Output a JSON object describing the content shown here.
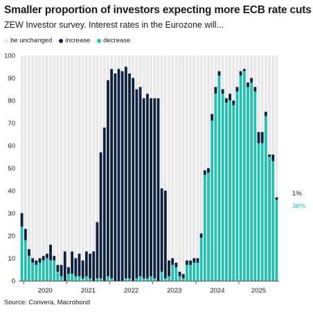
{
  "title": "Smaller proportion of investors expecting more ECB rate cuts",
  "subtitle": "ZEW Investor survey. Interest rates in the Eurozone will...",
  "source": "Source: Convera, Macrobond",
  "colors": {
    "unchanged": "#e8e8e8",
    "increase": "#0e2240",
    "decrease": "#24bfb0"
  },
  "end_labels": {
    "increase": "1%",
    "decrease": "36%"
  },
  "chart_data": {
    "type": "bar",
    "stacked": true,
    "ylim": [
      0,
      100
    ],
    "yticks": [
      0,
      10,
      20,
      30,
      40,
      50,
      60,
      70,
      80,
      90,
      100
    ],
    "xticks": [
      "2020",
      "2021",
      "2022",
      "2023",
      "2024",
      "2025"
    ],
    "start_month": "2019-12",
    "grid": false,
    "legend_position": "top-left",
    "series": [
      {
        "name": "be unchanged",
        "key": "unchanged"
      },
      {
        "name": "increase",
        "key": "increase"
      },
      {
        "name": "decrease",
        "key": "decrease"
      }
    ],
    "decrease": [
      24,
      18,
      11,
      8,
      7,
      8,
      9,
      10,
      9,
      9,
      4,
      2,
      0,
      3,
      3,
      2,
      2,
      1,
      2,
      1,
      0,
      1,
      1,
      0,
      2,
      1,
      0,
      0,
      0,
      1,
      1,
      0,
      1,
      2,
      1,
      1,
      2,
      1,
      0,
      4,
      1,
      2,
      7,
      6,
      2,
      1,
      7,
      7,
      8,
      8,
      19,
      47,
      48,
      71,
      83,
      91,
      83,
      79,
      80,
      78,
      84,
      91,
      93,
      86,
      88,
      84,
      61,
      61,
      73,
      55,
      53,
      36
    ],
    "increase": [
      6,
      5,
      3,
      2,
      2,
      2,
      2,
      2,
      7,
      2,
      3,
      5,
      13,
      3,
      10,
      8,
      10,
      8,
      11,
      11,
      13,
      25,
      56,
      68,
      87,
      93,
      92,
      94,
      93,
      94,
      91,
      90,
      84,
      84,
      80,
      82,
      79,
      80,
      81,
      37,
      39,
      7,
      3,
      2,
      2,
      2,
      2,
      2,
      2,
      2,
      2,
      2,
      2,
      3,
      3,
      2,
      2,
      2,
      3,
      2,
      2,
      2,
      1,
      2,
      2,
      2,
      5,
      5,
      2,
      1,
      3,
      1
    ]
  }
}
